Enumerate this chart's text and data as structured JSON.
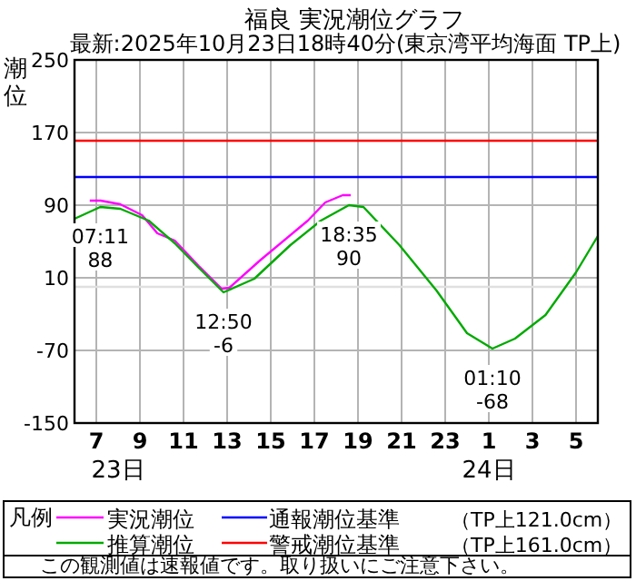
{
  "chart_data": {
    "type": "line",
    "title": "福良 実況潮位グラフ",
    "subtitle": "最新:2025年10月23日18時40分(東京湾平均海面 TP上)",
    "ylabel": "潮位",
    "legend_title": "凡例",
    "xlim": [
      "2025-10-23T06:00",
      "2025-10-24T06:00"
    ],
    "ylim": [
      -150,
      250
    ],
    "xticks": [
      {
        "value": "2025-10-23T07:00",
        "label": "7"
      },
      {
        "value": "2025-10-23T09:00",
        "label": "9"
      },
      {
        "value": "2025-10-23T11:00",
        "label": "11"
      },
      {
        "value": "2025-10-23T13:00",
        "label": "13"
      },
      {
        "value": "2025-10-23T15:00",
        "label": "15"
      },
      {
        "value": "2025-10-23T17:00",
        "label": "17"
      },
      {
        "value": "2025-10-23T19:00",
        "label": "19"
      },
      {
        "value": "2025-10-23T21:00",
        "label": "21"
      },
      {
        "value": "2025-10-23T23:00",
        "label": "23"
      },
      {
        "value": "2025-10-24T01:00",
        "label": "1"
      },
      {
        "value": "2025-10-24T03:00",
        "label": "3"
      },
      {
        "value": "2025-10-24T05:00",
        "label": "5"
      }
    ],
    "yticks": [
      -150,
      -70,
      10,
      90,
      170,
      250
    ],
    "grid": true,
    "legend": "bottom",
    "series": [
      {
        "name": "実況潮位",
        "color": "#ff00ff",
        "x": [
          "2025-10-23T06:42",
          "2025-10-23T07:12",
          "2025-10-23T08:06",
          "2025-10-23T09:06",
          "2025-10-23T09:48",
          "2025-10-23T10:36",
          "2025-10-23T11:42",
          "2025-10-23T12:45",
          "2025-10-23T13:06",
          "2025-10-23T14:30",
          "2025-10-23T16:12",
          "2025-10-23T16:42",
          "2025-10-23T17:30",
          "2025-10-23T18:18",
          "2025-10-23T18:40"
        ],
        "values": [
          95,
          95,
          91,
          79,
          59,
          51,
          23,
          -2,
          -1,
          29,
          63,
          73,
          93,
          101,
          101
        ]
      },
      {
        "name": "推算潮位",
        "color": "#00aa00",
        "x": [
          "2025-10-23T06:00",
          "2025-10-23T07:11",
          "2025-10-23T08:06",
          "2025-10-23T09:24",
          "2025-10-23T10:36",
          "2025-10-23T11:42",
          "2025-10-23T12:50",
          "2025-10-23T14:15",
          "2025-10-23T15:54",
          "2025-10-23T17:18",
          "2025-10-23T18:35",
          "2025-10-23T19:15",
          "2025-10-23T20:54",
          "2025-10-23T22:36",
          "2025-10-24T00:00",
          "2025-10-24T01:10",
          "2025-10-24T02:12",
          "2025-10-24T03:36",
          "2025-10-24T05:00",
          "2025-10-24T06:00"
        ],
        "values": [
          75,
          88,
          86,
          73,
          48,
          21,
          -6,
          9,
          46,
          73,
          90,
          88,
          46,
          -4,
          -51,
          -68,
          -57,
          -31,
          16,
          56
        ]
      }
    ],
    "ref_lines": [
      {
        "axis": "y",
        "value": 121,
        "label": "通報潮位基準",
        "color": "#0000ff"
      },
      {
        "axis": "y",
        "value": 161,
        "label": "警戒潮位基準",
        "color": "#ff0000"
      },
      {
        "axis": "y",
        "value": 0,
        "color": "#e0e0e0"
      }
    ],
    "annotations": [
      "23日",
      "24日",
      "（TP上121.0cm）",
      "（TP上161.0cm）",
      "この観測値は速報値です。取り扱いにご注意下さい。",
      {
        "text": "07:11 88",
        "x": "2025-10-23T07:11",
        "y": 88
      },
      {
        "text": "12:50 -6",
        "x": "2025-10-23T12:50",
        "y": -6
      },
      {
        "text": "18:35 90",
        "x": "2025-10-23T18:35",
        "y": 90
      },
      {
        "text": "01:10 -68",
        "x": "2025-10-24T01:10",
        "y": -68
      }
    ]
  }
}
